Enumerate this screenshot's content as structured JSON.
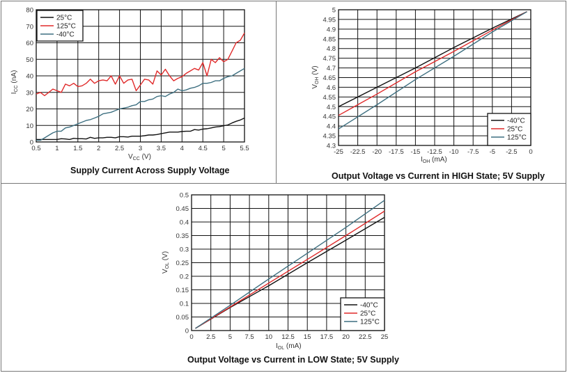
{
  "chart_data": [
    {
      "type": "line",
      "title": "Supply Current Across Supply Voltage",
      "xlabel": {
        "main": "V",
        "sub": "CC",
        "unit": " (V)"
      },
      "ylabel": {
        "main": "I",
        "sub": "CC",
        "unit": " (nA)"
      },
      "xlim": [
        0.5,
        5.5
      ],
      "ylim": [
        0,
        80
      ],
      "xticks": [
        "0.5",
        "1",
        "1.5",
        "2",
        "2.5",
        "3",
        "3.5",
        "4",
        "4.5",
        "5",
        "5.5"
      ],
      "yticks": [
        "0",
        "10",
        "20",
        "30",
        "40",
        "50",
        "60",
        "70",
        "80"
      ],
      "grid": true,
      "legend": "top-left",
      "x": [
        0.5,
        0.6,
        0.7,
        0.8,
        0.9,
        1.0,
        1.1,
        1.2,
        1.3,
        1.4,
        1.5,
        1.6,
        1.7,
        1.8,
        1.9,
        2.0,
        2.1,
        2.2,
        2.3,
        2.4,
        2.5,
        2.6,
        2.7,
        2.8,
        2.9,
        3.0,
        3.1,
        3.2,
        3.3,
        3.4,
        3.5,
        3.6,
        3.7,
        3.8,
        3.9,
        4.0,
        4.1,
        4.2,
        4.3,
        4.4,
        4.5,
        4.6,
        4.7,
        4.8,
        4.9,
        5.0,
        5.1,
        5.2,
        5.3,
        5.4,
        5.5
      ],
      "series": [
        {
          "name": "25°C",
          "color": "#111111",
          "values": [
            1.5,
            1.5,
            1.5,
            1.5,
            1.5,
            1.5,
            2,
            1.8,
            1.5,
            2.2,
            2,
            2,
            1.8,
            2.8,
            2.2,
            2.5,
            2.5,
            2.8,
            2.8,
            2.5,
            3.2,
            3.2,
            3,
            3.5,
            3.5,
            3.5,
            3.8,
            4.2,
            4.2,
            4.5,
            5,
            5.5,
            6,
            6,
            6,
            6.3,
            6.5,
            6.5,
            7.5,
            7.2,
            7.8,
            8,
            8.5,
            9,
            9.3,
            9.8,
            10.3,
            11.5,
            12.5,
            13.3,
            14.5
          ]
        },
        {
          "name": "125°C",
          "color": "#e02a2a",
          "values": [
            29,
            30,
            28,
            30,
            32,
            31,
            30,
            35,
            34,
            35.5,
            33.5,
            34,
            35.5,
            38,
            35.5,
            37,
            37.5,
            37,
            40,
            35,
            40,
            35.5,
            37.5,
            38,
            31,
            34.5,
            38,
            37.5,
            35,
            43,
            40.5,
            44,
            40,
            37,
            38.5,
            39.5,
            41.5,
            43,
            44.5,
            43.5,
            48,
            40,
            50,
            48,
            51,
            48.5,
            50,
            55,
            60,
            61.5,
            66
          ]
        },
        {
          "name": "-40°C",
          "color": "#3d6f80",
          "values": [
            1,
            1,
            2.5,
            4,
            5.5,
            6.5,
            6.5,
            8.5,
            9,
            10,
            11,
            12,
            13,
            13.5,
            14.5,
            15.5,
            17,
            17.5,
            18,
            19,
            20,
            20.5,
            21,
            22,
            22.5,
            24.5,
            24.5,
            25.5,
            26,
            27.5,
            28,
            27.5,
            29,
            30,
            32,
            31,
            31.5,
            32.5,
            33,
            34,
            35.5,
            35.5,
            36,
            37,
            37,
            38.5,
            39.5,
            40,
            41.5,
            43,
            44.5
          ]
        }
      ]
    },
    {
      "type": "line",
      "title": "Output Voltage vs Current in HIGH State; 5V Supply",
      "xlabel": {
        "main": "I",
        "sub": "OH",
        "unit": " (mA)"
      },
      "ylabel": {
        "main": "V",
        "sub": "OH",
        "unit": " (V)"
      },
      "xlim": [
        -25,
        0
      ],
      "ylim": [
        4.3,
        5
      ],
      "xticks": [
        "-25",
        "-22.5",
        "-20",
        "-17.5",
        "-15",
        "-12.5",
        "-10",
        "-7.5",
        "-5",
        "-2.5",
        "0"
      ],
      "yticks": [
        "4.3",
        "4.35",
        "4.4",
        "4.45",
        "4.5",
        "4.55",
        "4.6",
        "4.65",
        "4.7",
        "4.75",
        "4.8",
        "4.85",
        "4.9",
        "4.95",
        "5"
      ],
      "grid": true,
      "legend": "bottom-right",
      "x": [
        -25,
        -20,
        -15,
        -10,
        -5,
        -0.5
      ],
      "series": [
        {
          "name": "-40°C",
          "color": "#111111",
          "values": [
            4.5,
            4.6,
            4.7,
            4.805,
            4.905,
            4.99
          ]
        },
        {
          "name": "25°C",
          "color": "#e02a2a",
          "values": [
            4.455,
            4.565,
            4.68,
            4.785,
            4.895,
            4.99
          ]
        },
        {
          "name": "125°C",
          "color": "#3d6f80",
          "values": [
            4.385,
            4.51,
            4.64,
            4.76,
            4.885,
            4.99
          ]
        }
      ]
    },
    {
      "type": "line",
      "title": "Output Voltage vs Current in LOW State; 5V Supply",
      "xlabel": {
        "main": "I",
        "sub": "OL",
        "unit": " (mA)"
      },
      "ylabel": {
        "main": "V",
        "sub": "OL",
        "unit": " (V)"
      },
      "xlim": [
        0,
        25
      ],
      "ylim": [
        0,
        0.5
      ],
      "xticks": [
        "0",
        "2.5",
        "5",
        "7.5",
        "10",
        "12.5",
        "15",
        "17.5",
        "20",
        "22.5",
        "25"
      ],
      "yticks": [
        "0",
        "0.05",
        "0.1",
        "0.15",
        "0.2",
        "0.25",
        "0.3",
        "0.35",
        "0.4",
        "0.45",
        "0.5"
      ],
      "grid": true,
      "legend": "bottom-right",
      "x": [
        0.5,
        5,
        10,
        15,
        20,
        25
      ],
      "series": [
        {
          "name": "-40°C",
          "color": "#111111",
          "values": [
            0.008,
            0.085,
            0.165,
            0.25,
            0.333,
            0.417
          ]
        },
        {
          "name": "25°C",
          "color": "#e02a2a",
          "values": [
            0.008,
            0.087,
            0.175,
            0.262,
            0.35,
            0.44
          ]
        },
        {
          "name": "125°C",
          "color": "#3d6f80",
          "values": [
            0.008,
            0.093,
            0.19,
            0.285,
            0.38,
            0.48
          ]
        }
      ]
    }
  ]
}
